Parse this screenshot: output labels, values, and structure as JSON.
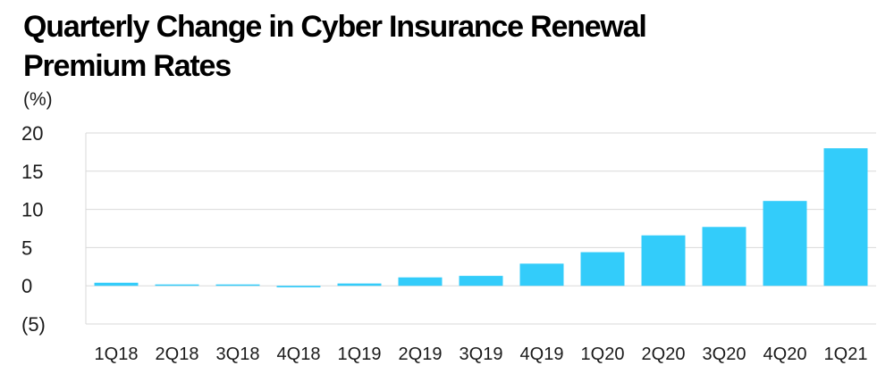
{
  "chart_data": {
    "type": "bar",
    "title": "Quarterly Change in Cyber Insurance Renewal Premium Rates",
    "ylabel": "(%)",
    "xlabel": "",
    "categories": [
      "1Q18",
      "2Q18",
      "3Q18",
      "4Q18",
      "1Q19",
      "2Q19",
      "3Q19",
      "4Q19",
      "1Q20",
      "2Q20",
      "3Q20",
      "4Q20",
      "1Q21"
    ],
    "values": [
      0.4,
      0,
      0,
      -0.2,
      0.3,
      1.1,
      1.3,
      2.9,
      4.4,
      6.6,
      7.7,
      11.1,
      18.0
    ],
    "ylim": [
      -5,
      20
    ],
    "yticks": [
      20,
      15,
      10,
      5,
      0,
      -5
    ],
    "ytick_labels": [
      "20",
      "15",
      "10",
      "5",
      "0",
      "(5)"
    ],
    "grid": true,
    "bar_color": "#33ccfa",
    "grid_color": "#d9d9d9"
  }
}
